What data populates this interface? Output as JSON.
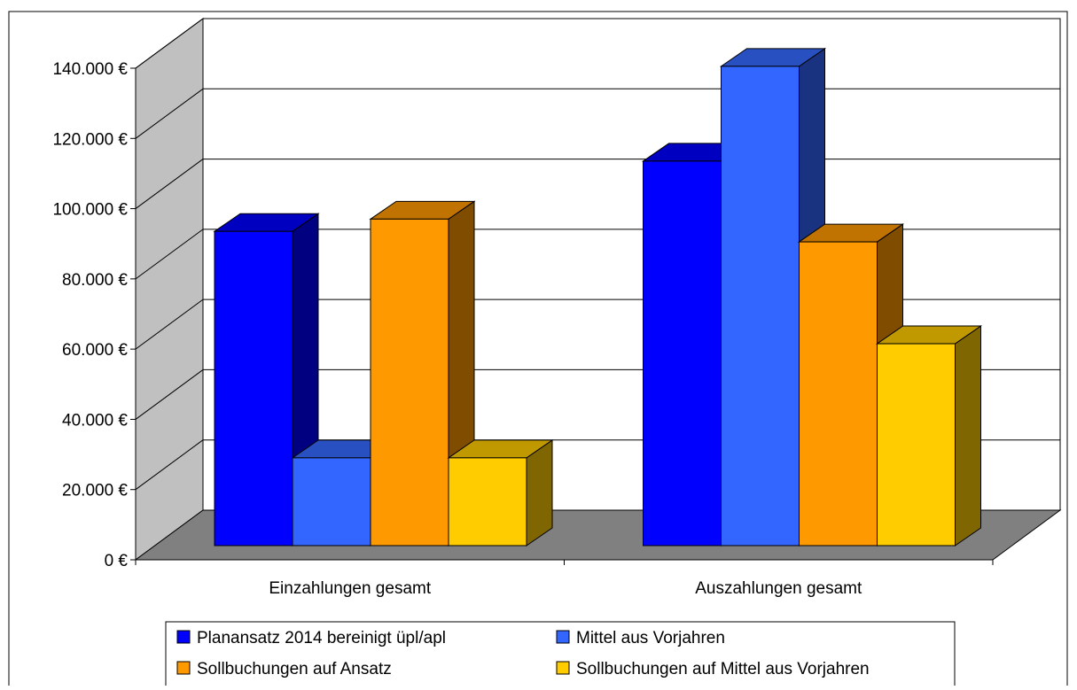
{
  "chart_data": {
    "type": "bar",
    "title": "",
    "xlabel": "",
    "ylabel": "",
    "categories": [
      "Einzahlungen gesamt",
      "Auszahlungen gesamt"
    ],
    "series": [
      {
        "name": "Planansatz 2014 bereinigt üpl/apl",
        "values": [
          89500,
          109500
        ],
        "color": "#0000ff",
        "side_color": "#000080",
        "top_color": "#0000c0"
      },
      {
        "name": "Mittel aus Vorjahren",
        "values": [
          25000,
          136500
        ],
        "color": "#3366ff",
        "side_color": "#1a3380",
        "top_color": "#2850c0"
      },
      {
        "name": "Sollbuchungen auf Ansatz",
        "values": [
          93000,
          86500
        ],
        "color": "#ff9900",
        "side_color": "#804c00",
        "top_color": "#c07300"
      },
      {
        "name": "Sollbuchungen auf Mittel aus Vorjahren",
        "values": [
          25000,
          57500
        ],
        "color": "#ffcc00",
        "side_color": "#806600",
        "top_color": "#c09900"
      }
    ],
    "ylim": [
      0,
      140000
    ],
    "yticks": [
      0,
      20000,
      40000,
      60000,
      80000,
      100000,
      120000,
      140000
    ],
    "ytick_labels": [
      "0 €",
      "20.000 €",
      "40.000 €",
      "60.000 €",
      "80.000 €",
      "100.000 €",
      "120.000 €",
      "140.000 €"
    ],
    "grid": true,
    "legend": "bottom",
    "wall_color": "#c0c0c0",
    "floor_color": "#808080"
  }
}
